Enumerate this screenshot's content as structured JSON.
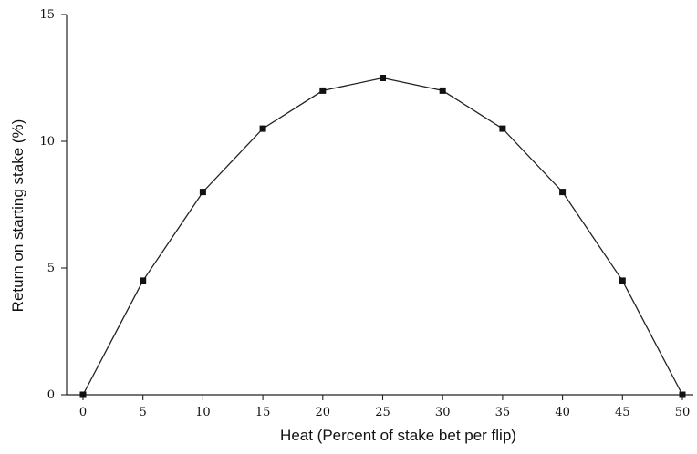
{
  "chart_data": {
    "type": "line",
    "title": "",
    "xlabel": "Heat (Percent of stake bet per flip)",
    "ylabel": "Return on starting stake (%)",
    "xlim": [
      0,
      50
    ],
    "ylim": [
      0,
      15
    ],
    "xticks": [
      0,
      5,
      10,
      15,
      20,
      25,
      30,
      35,
      40,
      45,
      50
    ],
    "yticks": [
      0,
      5,
      10,
      15
    ],
    "grid": false,
    "legend": "none",
    "marker": "square",
    "series": [
      {
        "x": [
          0,
          5,
          10,
          15,
          20,
          25,
          30,
          35,
          40,
          45,
          50
        ],
        "y": [
          0,
          4.5,
          8.0,
          10.5,
          12.0,
          12.5,
          12.0,
          10.5,
          8.0,
          4.5,
          0
        ]
      }
    ]
  }
}
